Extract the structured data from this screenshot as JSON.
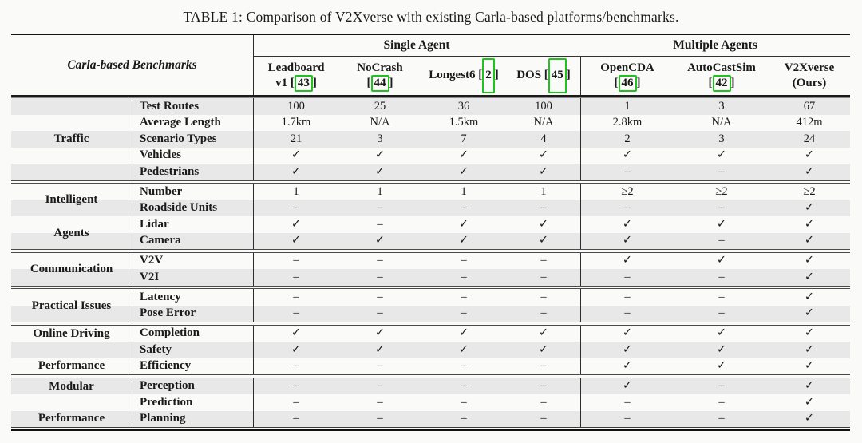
{
  "page": {
    "title": "TABLE 1: Comparison of V2Xverse with existing Carla-based platforms/benchmarks."
  },
  "header": {
    "corner": "Carla-based Benchmarks",
    "groups": [
      {
        "label": "Single Agent"
      },
      {
        "label": "Multiple Agents"
      }
    ],
    "columns": [
      {
        "line1": "Leadboard",
        "pre": "v1 [",
        "cite": "43",
        "post": "]"
      },
      {
        "line1": "NoCrash",
        "pre": "[",
        "cite": "44",
        "post": "]"
      },
      {
        "line1": "Longest6 [",
        "cite": "2",
        "post": "]"
      },
      {
        "line1": "DOS [",
        "cite": "45",
        "post": "]"
      },
      {
        "line1": "OpenCDA",
        "pre": "[",
        "cite": "46",
        "post": "]"
      },
      {
        "line1": "AutoCastSim",
        "pre": "[",
        "cite": "42",
        "post": "]"
      },
      {
        "line1": "V2Xverse",
        "sub": "(Ours)"
      }
    ]
  },
  "sections": [
    {
      "group": [
        "Traffic"
      ],
      "rows": [
        {
          "label": "Test Routes",
          "values": [
            "100",
            "25",
            "36",
            "100",
            "1",
            "3",
            "67"
          ]
        },
        {
          "label": "Average Length",
          "values": [
            "1.7km",
            "N/A",
            "1.5km",
            "N/A",
            "2.8km",
            "N/A",
            "412m"
          ]
        },
        {
          "label": "Scenario Types",
          "values": [
            "21",
            "3",
            "7",
            "4",
            "2",
            "3",
            "24"
          ]
        },
        {
          "label": "Vehicles",
          "values": [
            "✓",
            "✓",
            "✓",
            "✓",
            "✓",
            "✓",
            "✓"
          ]
        },
        {
          "label": "Pedestrians",
          "values": [
            "✓",
            "✓",
            "✓",
            "✓",
            "–",
            "–",
            "✓"
          ]
        }
      ]
    },
    {
      "group": [
        "Intelligent",
        "Agents"
      ],
      "rows": [
        {
          "label": "Number",
          "values": [
            "1",
            "1",
            "1",
            "1",
            "≥2",
            "≥2",
            "≥2"
          ]
        },
        {
          "label": "Roadside Units",
          "values": [
            "–",
            "–",
            "–",
            "–",
            "–",
            "–",
            "✓"
          ]
        },
        {
          "label": "Lidar",
          "values": [
            "✓",
            "–",
            "✓",
            "✓",
            "✓",
            "✓",
            "✓"
          ]
        },
        {
          "label": "Camera",
          "values": [
            "✓",
            "✓",
            "✓",
            "✓",
            "✓",
            "–",
            "✓"
          ]
        }
      ]
    },
    {
      "group": [
        "Communication"
      ],
      "rows": [
        {
          "label": "V2V",
          "values": [
            "–",
            "–",
            "–",
            "–",
            "✓",
            "✓",
            "✓"
          ]
        },
        {
          "label": "V2I",
          "values": [
            "–",
            "–",
            "–",
            "–",
            "–",
            "–",
            "✓"
          ]
        }
      ]
    },
    {
      "group": [
        "Practical Issues"
      ],
      "rows": [
        {
          "label": "Latency",
          "values": [
            "–",
            "–",
            "–",
            "–",
            "–",
            "–",
            "✓"
          ]
        },
        {
          "label": "Pose Error",
          "values": [
            "–",
            "–",
            "–",
            "–",
            "–",
            "–",
            "✓"
          ]
        }
      ]
    },
    {
      "group": [
        "Online Driving",
        "Performance"
      ],
      "rows": [
        {
          "label": "Completion",
          "values": [
            "✓",
            "✓",
            "✓",
            "✓",
            "✓",
            "✓",
            "✓"
          ]
        },
        {
          "label": "Safety",
          "values": [
            "✓",
            "✓",
            "✓",
            "✓",
            "✓",
            "✓",
            "✓"
          ]
        },
        {
          "label": "Efficiency",
          "values": [
            "–",
            "–",
            "–",
            "–",
            "✓",
            "✓",
            "✓"
          ]
        }
      ]
    },
    {
      "group": [
        "Modular",
        "Performance"
      ],
      "rows": [
        {
          "label": "Perception",
          "values": [
            "–",
            "–",
            "–",
            "–",
            "✓",
            "–",
            "✓"
          ]
        },
        {
          "label": "Prediction",
          "values": [
            "–",
            "–",
            "–",
            "–",
            "–",
            "–",
            "✓"
          ]
        },
        {
          "label": "Planning",
          "values": [
            "–",
            "–",
            "–",
            "–",
            "–",
            "–",
            "✓"
          ]
        }
      ]
    }
  ],
  "colors": {
    "citation_box_green": "#22c122",
    "row_stripe": "#e8e8e8",
    "rule_dark": "#141414"
  }
}
